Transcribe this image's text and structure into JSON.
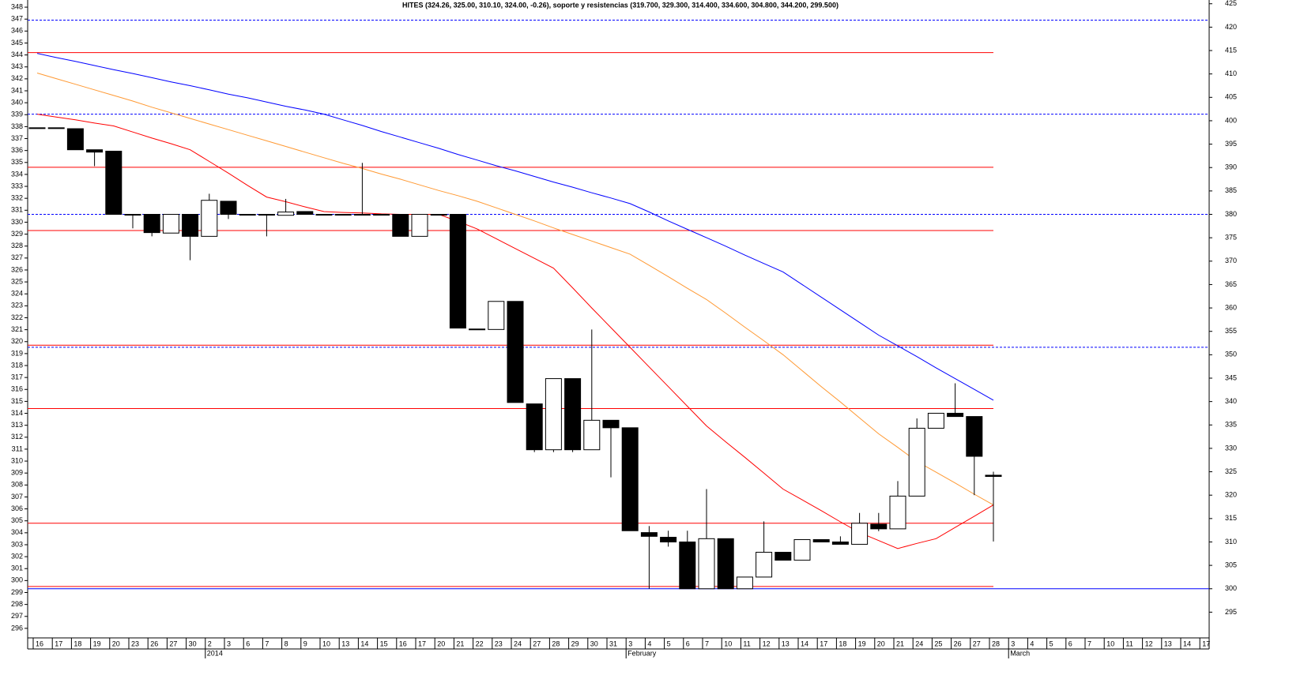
{
  "chart_data": {
    "type": "candlestick",
    "title": "HITES (324.26, 325.00, 310.10, 324.00, -0.26), soporte y resistencias (319.700, 329.300, 314.400, 334.600, 304.800, 344.200, 299.500)",
    "categories": [
      "16",
      "17",
      "18",
      "19",
      "20",
      "23",
      "26",
      "27",
      "30",
      "2",
      "3",
      "6",
      "7",
      "8",
      "9",
      "10",
      "13",
      "14",
      "15",
      "16",
      "17",
      "20",
      "21",
      "22",
      "23",
      "24",
      "27",
      "28",
      "29",
      "30",
      "31",
      "3",
      "4",
      "5",
      "6",
      "7",
      "10",
      "11",
      "12",
      "13",
      "14",
      "17",
      "18",
      "19",
      "20",
      "21",
      "24",
      "25",
      "26",
      "27",
      "28",
      "3",
      "4",
      "5",
      "6",
      "7",
      "10",
      "11",
      "12",
      "13",
      "14",
      "17"
    ],
    "month_labels": [
      {
        "label": "2014",
        "category": 9
      },
      {
        "label": "February",
        "category": 31
      },
      {
        "label": "March",
        "category": 51
      }
    ],
    "open": [
      398.5,
      398.5,
      398.3,
      393.8,
      393.5,
      380,
      380,
      376,
      380,
      375.3,
      382.8,
      380,
      380,
      379.8,
      380.6,
      380,
      380,
      380,
      380,
      380,
      375.3,
      380,
      380,
      355.5,
      355.4,
      361.4,
      339.5,
      329.7,
      344.9,
      329.7,
      336,
      334.4,
      312,
      311,
      310,
      300,
      310.7,
      300,
      302.5,
      307.8,
      306.1,
      310.5,
      310,
      309.5,
      313.8,
      312.8,
      319.8,
      334.3,
      337.5,
      336.8,
      324.26,
      null,
      null,
      null,
      null,
      null,
      null,
      null,
      null,
      null,
      null,
      null
    ],
    "high": [
      398.5,
      398.5,
      398.3,
      393.8,
      393.5,
      380,
      380,
      380,
      380,
      384.4,
      382.8,
      380,
      380,
      383.3,
      380.6,
      380,
      380,
      391,
      380,
      380,
      380,
      380,
      380,
      355.5,
      361.4,
      361.4,
      339.5,
      344.9,
      344.9,
      355.4,
      336,
      334.4,
      313.4,
      312.4,
      312.4,
      321.3,
      310.7,
      302.5,
      314.4,
      307.8,
      310.5,
      310.5,
      311.2,
      316.2,
      316.2,
      323,
      336.4,
      337.5,
      343.9,
      336.8,
      325,
      null,
      null,
      null,
      null,
      null,
      null,
      null,
      null,
      null,
      null,
      null
    ],
    "low": [
      398.5,
      398.5,
      393.8,
      390.3,
      380,
      377,
      375.3,
      376,
      370.2,
      375.3,
      379,
      380,
      375.3,
      379.8,
      380,
      380,
      380,
      380,
      380,
      375.3,
      375.3,
      380,
      355.7,
      355.5,
      355.4,
      339.8,
      329.2,
      329.2,
      329.2,
      329.7,
      323.8,
      312.4,
      300,
      309,
      300,
      300,
      300,
      300,
      302.5,
      306.1,
      306.1,
      310,
      309.5,
      309.5,
      312.3,
      312.8,
      319.8,
      334.3,
      336.8,
      320,
      310.1,
      null,
      null,
      null,
      null,
      null,
      null,
      null,
      null,
      null,
      null,
      null
    ],
    "close": [
      398.5,
      398.5,
      393.8,
      393.3,
      380,
      380,
      376.1,
      380,
      375.3,
      383,
      380,
      380,
      380,
      380.5,
      380,
      380,
      380,
      380,
      380,
      375.3,
      380,
      380,
      355.7,
      355.5,
      361.4,
      339.8,
      329.7,
      344.9,
      329.7,
      336,
      334.4,
      312.4,
      311.2,
      310,
      300,
      310.7,
      300,
      302.5,
      307.8,
      306.1,
      310.5,
      310,
      309.5,
      314,
      312.8,
      319.8,
      334.3,
      337.5,
      336.8,
      328.3,
      324,
      null,
      null,
      null,
      null,
      null,
      null,
      null,
      null,
      null,
      null,
      null
    ],
    "up_color": "#ffffff",
    "down_color": "#000000",
    "lines": [
      {
        "color": "#0000ff",
        "axis": "y2",
        "values": [
          414.4,
          413.5,
          412.7,
          411.8,
          410.9,
          410.1,
          409.2,
          408.3,
          407.5,
          406.6,
          405.7,
          404.9,
          404.0,
          403.1,
          402.3,
          401.4,
          400.2,
          399.0,
          397.7,
          396.5,
          395.3,
          394.1,
          392.8,
          391.6,
          390.4,
          389.3,
          388.1,
          386.9,
          385.8,
          384.6,
          383.5,
          382.3,
          380.5,
          378.6,
          376.8,
          375.0,
          373.2,
          371.3,
          369.5,
          367.7,
          365.0,
          362.3,
          359.6,
          356.9,
          354.2,
          351.9,
          349.6,
          347.2,
          344.9,
          342.6,
          340.3,
          null,
          null,
          null,
          null,
          null,
          null,
          null,
          null,
          null,
          null,
          null
        ]
      },
      {
        "color": "#ff9933",
        "axis": "y2",
        "values": [
          410.2,
          409.0,
          407.8,
          406.6,
          405.4,
          404.2,
          402.9,
          401.7,
          400.5,
          399.3,
          398.1,
          396.9,
          395.7,
          394.5,
          393.3,
          392.1,
          390.9,
          389.8,
          388.6,
          387.5,
          386.3,
          385.1,
          384.0,
          382.8,
          381.4,
          380.0,
          378.6,
          377.1,
          375.7,
          374.3,
          372.9,
          371.5,
          369.1,
          366.7,
          364.2,
          361.8,
          358.9,
          355.9,
          353.0,
          350.0,
          346.6,
          343.2,
          339.9,
          336.5,
          333.1,
          330.2,
          327.2,
          324.9,
          322.6,
          320.2,
          317.9,
          null,
          null,
          null,
          null,
          null,
          null,
          null,
          null,
          null,
          null,
          null
        ]
      },
      {
        "color": "#ff0000",
        "axis": "y2",
        "values": [
          401.4,
          400.8,
          400.2,
          399.5,
          398.9,
          397.6,
          396.3,
          395.1,
          393.8,
          391.3,
          388.8,
          386.2,
          383.7,
          382.7,
          381.6,
          380.6,
          380.4,
          380.3,
          380.1,
          380.0,
          380.0,
          380.0,
          378.5,
          376.9,
          374.8,
          372.7,
          370.6,
          368.5,
          364.3,
          360.0,
          355.8,
          351.6,
          347.4,
          343.2,
          339.0,
          334.8,
          331.4,
          328.1,
          324.7,
          321.3,
          319.0,
          316.7,
          314.3,
          312.0,
          310.3,
          308.6,
          309.7,
          310.7,
          313.1,
          315.5,
          317.9,
          null,
          null,
          null,
          null,
          null,
          null,
          null,
          null,
          null,
          null,
          null
        ]
      }
    ],
    "levels": [
      {
        "value": 421.5,
        "axis": "y2",
        "color": "#0000ff",
        "dashed": true,
        "span": "full"
      },
      {
        "value": 401.4,
        "axis": "y2",
        "color": "#0000ff",
        "dashed": true,
        "span": "full"
      },
      {
        "value": 380,
        "axis": "y2",
        "color": "#0000ff",
        "dashed": true,
        "span": "full"
      },
      {
        "value": 351.6,
        "axis": "y2",
        "color": "#0000ff",
        "dashed": true,
        "span": "full"
      },
      {
        "value": 300,
        "axis": "y2",
        "color": "#0000ff",
        "dashed": false,
        "span": "full"
      },
      {
        "value": 319.7,
        "axis": "y",
        "color": "#ff0000",
        "dashed": false,
        "span": "data"
      },
      {
        "value": 329.3,
        "axis": "y",
        "color": "#ff0000",
        "dashed": false,
        "span": "data"
      },
      {
        "value": 314.4,
        "axis": "y",
        "color": "#ff0000",
        "dashed": false,
        "span": "data"
      },
      {
        "value": 334.6,
        "axis": "y",
        "color": "#ff0000",
        "dashed": false,
        "span": "data"
      },
      {
        "value": 304.8,
        "axis": "y",
        "color": "#ff0000",
        "dashed": false,
        "span": "data"
      },
      {
        "value": 344.2,
        "axis": "y",
        "color": "#ff0000",
        "dashed": false,
        "span": "data"
      },
      {
        "value": 299.5,
        "axis": "y",
        "color": "#ff0000",
        "dashed": false,
        "span": "data"
      }
    ],
    "ylim": [
      295.2,
      348.6
    ],
    "yticks": [
      296,
      297,
      298,
      299,
      300,
      301,
      302,
      303,
      304,
      305,
      306,
      307,
      308,
      309,
      310,
      311,
      312,
      313,
      314,
      315,
      316,
      317,
      318,
      319,
      320,
      321,
      322,
      323,
      324,
      325,
      326,
      327,
      328,
      329,
      330,
      331,
      332,
      333,
      334,
      335,
      336,
      337,
      338,
      339,
      340,
      341,
      342,
      343,
      344,
      345,
      346,
      347,
      348
    ],
    "y2lim": [
      289.5,
      425.8
    ],
    "y2ticks": [
      295,
      300,
      305,
      310,
      315,
      320,
      325,
      330,
      335,
      340,
      345,
      350,
      355,
      360,
      365,
      370,
      375,
      380,
      385,
      390,
      395,
      400,
      405,
      410,
      415,
      420,
      425
    ]
  }
}
